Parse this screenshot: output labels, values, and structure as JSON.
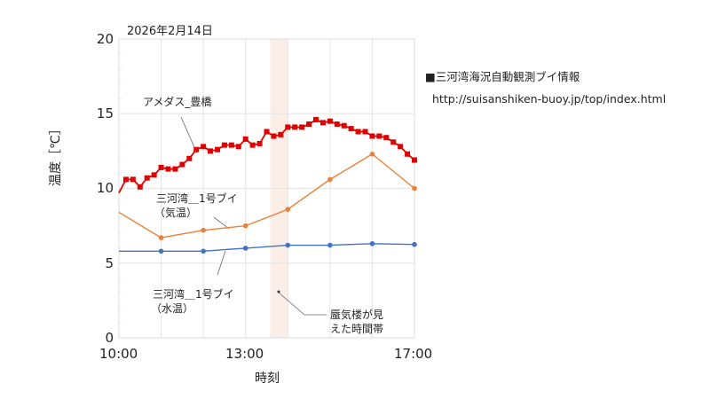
{
  "chart_data": {
    "type": "line",
    "title": "2026年2月14日",
    "xlabel": "時刻",
    "ylabel": "温度［℃］",
    "ylim": [
      0,
      20
    ],
    "yticks": [
      0,
      5,
      10,
      15,
      20
    ],
    "xlim": [
      "10:00",
      "17:00"
    ],
    "xtick_labels": [
      "10:00",
      "13:00",
      "17:00"
    ],
    "grid": true,
    "legend_position": "none (inline annotations)",
    "highlight_band": {
      "label": "蜃気楼が見えた時間帯",
      "start": "13:35",
      "end": "14:00",
      "color": "#fbeee6"
    },
    "series": [
      {
        "name": "アメダス_豊橋",
        "color": "#e00000",
        "marker": "square",
        "x": [
          "10:00",
          "10:10",
          "10:20",
          "10:30",
          "10:40",
          "10:50",
          "11:00",
          "11:10",
          "11:20",
          "11:30",
          "11:40",
          "11:50",
          "12:00",
          "12:10",
          "12:20",
          "12:30",
          "12:40",
          "12:50",
          "13:00",
          "13:10",
          "13:20",
          "13:30",
          "13:40",
          "13:50",
          "14:00",
          "14:10",
          "14:20",
          "14:30",
          "14:40",
          "14:50",
          "15:00",
          "15:10",
          "15:20",
          "15:30",
          "15:40",
          "15:50",
          "16:00",
          "16:10",
          "16:20",
          "16:30",
          "16:40",
          "16:50",
          "17:00"
        ],
        "values": [
          9.7,
          10.6,
          10.6,
          10.1,
          10.7,
          10.9,
          11.4,
          11.3,
          11.3,
          11.6,
          12.0,
          12.6,
          12.8,
          12.5,
          12.6,
          12.9,
          12.9,
          12.8,
          13.3,
          12.9,
          13.0,
          13.8,
          13.5,
          13.6,
          14.1,
          14.1,
          14.1,
          14.3,
          14.6,
          14.4,
          14.5,
          14.3,
          14.2,
          14.0,
          13.8,
          13.8,
          13.5,
          13.5,
          13.4,
          13.1,
          12.8,
          12.3,
          11.9
        ]
      },
      {
        "name": "三河湾＿1号ブイ（気温）",
        "color": "#e8823a",
        "marker": "circle",
        "x": [
          "10:00",
          "11:00",
          "12:00",
          "13:00",
          "14:00",
          "15:00",
          "16:00",
          "17:00"
        ],
        "values": [
          8.4,
          6.7,
          7.2,
          7.5,
          8.6,
          10.6,
          12.3,
          10.0
        ]
      },
      {
        "name": "三河湾＿1号ブイ（水温）",
        "color": "#4472c4",
        "marker": "circle",
        "x": [
          "10:00",
          "11:00",
          "12:00",
          "13:00",
          "14:00",
          "15:00",
          "16:00",
          "17:00"
        ],
        "values": [
          5.8,
          5.8,
          5.8,
          6.0,
          6.2,
          6.2,
          6.3,
          6.25
        ]
      }
    ]
  },
  "labels": {
    "date": "2026年2月14日",
    "y_axis_title": "温度［℃］",
    "x_axis_title": "時刻",
    "y_ticks": [
      "20",
      "15",
      "10",
      "5",
      "0"
    ],
    "x_ticks": [
      "10:00",
      "13:00",
      "17:00"
    ],
    "annotations": {
      "amedas": "アメダス_豊橋",
      "buoy_air_line1": "三河湾＿1号ブイ",
      "buoy_air_line2": "（気温）",
      "buoy_water_line1": "三河湾＿1号ブイ",
      "buoy_water_line2": "（水温）",
      "mirage_line1": "蜃気楼が見",
      "mirage_line2": "えた時間帯"
    },
    "source_title": "■三河湾海況自動観測ブイ情報",
    "source_url": "http://suisanshiken-buoy.jp/top/index.html"
  },
  "colors": {
    "grid": "#e4e4e4",
    "band": "#fbeee6",
    "leader": "#666666"
  }
}
